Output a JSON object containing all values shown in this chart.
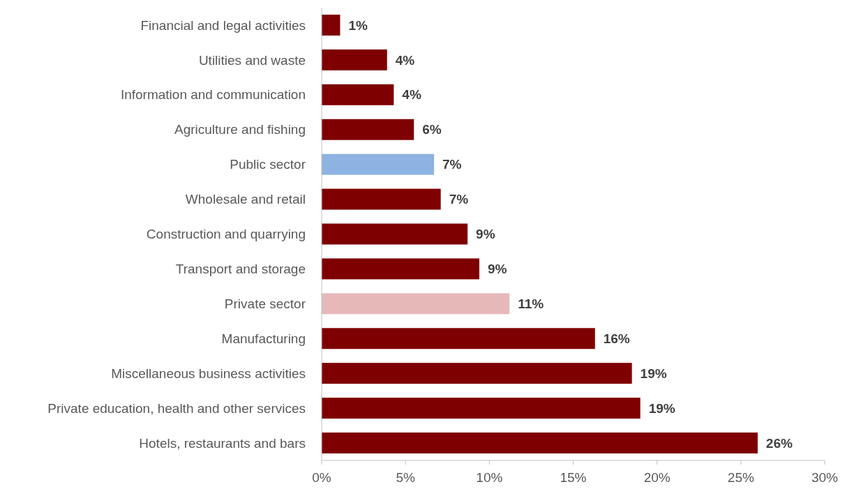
{
  "chart_data": {
    "type": "bar",
    "orientation": "horizontal",
    "categories": [
      "Financial and legal activities",
      "Utilities and waste",
      "Information and communication",
      "Agriculture and fishing",
      "Public sector",
      "Wholesale and retail",
      "Construction and quarrying",
      "Transport and storage",
      "Private sector",
      "Manufacturing",
      "Miscellaneous business activities",
      "Private education, health and other services",
      "Hotels, restaurants and bars"
    ],
    "values": [
      1.1,
      3.9,
      4.3,
      5.5,
      6.7,
      7.1,
      8.7,
      9.4,
      11.2,
      16.3,
      18.5,
      19.0,
      26.0
    ],
    "colors": [
      "#7f0000",
      "#7f0000",
      "#7f0000",
      "#7f0000",
      "#8db3e2",
      "#7f0000",
      "#7f0000",
      "#7f0000",
      "#e6b9b8",
      "#7f0000",
      "#7f0000",
      "#7f0000",
      "#7f0000"
    ],
    "value_labels": [
      "1%",
      "4%",
      "4%",
      "6%",
      "7%",
      "7%",
      "9%",
      "9%",
      "11%",
      "16%",
      "19%",
      "19%",
      "26%"
    ],
    "xlim": [
      0,
      30
    ],
    "xticks": [
      {
        "value": 0,
        "label": "0%"
      },
      {
        "value": 5,
        "label": "5%"
      },
      {
        "value": 10,
        "label": "10%"
      },
      {
        "value": 15,
        "label": "15%"
      },
      {
        "value": 20,
        "label": "20%"
      },
      {
        "value": 25,
        "label": "25%"
      },
      {
        "value": 30,
        "label": "30%"
      }
    ],
    "grid": false
  }
}
